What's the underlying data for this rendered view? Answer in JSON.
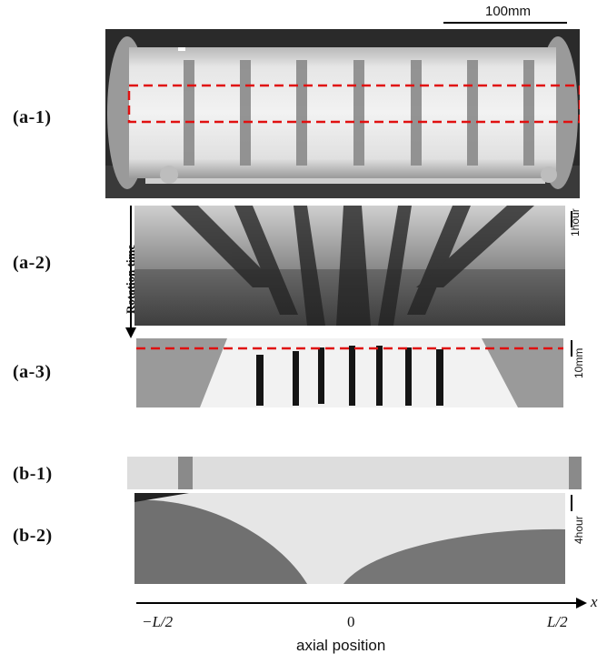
{
  "panels": {
    "a1": "(a-1)",
    "a2": "(a-2)",
    "a3": "(a-3)",
    "b1": "(b-1)",
    "b2": "(b-2)"
  },
  "scale_bars": {
    "top": "100mm",
    "a2": "1hour",
    "a3": "10mm",
    "b2": "4hour"
  },
  "rotation_label": "Rotation time",
  "axis": {
    "x_symbol": "x",
    "left": "−L/2",
    "center": "0",
    "right": "L/2",
    "title": "axial position"
  },
  "colors": {
    "dashed_box": "#e01010",
    "band": "#888888"
  }
}
